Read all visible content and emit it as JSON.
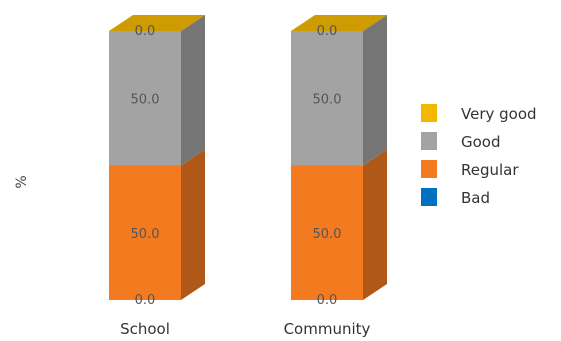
{
  "chart_data": {
    "type": "bar",
    "stacked": true,
    "style": "3d",
    "categories": [
      "School",
      "Community"
    ],
    "series": [
      {
        "name": "Bad",
        "color": "#0070C0",
        "values": [
          0.0,
          0.0
        ],
        "labels": [
          "0.0",
          "0.0"
        ]
      },
      {
        "name": "Regular",
        "color": "#F47A20",
        "values": [
          50.0,
          50.0
        ],
        "labels": [
          "50.0",
          "50.0"
        ]
      },
      {
        "name": "Good",
        "color": "#A3A3A3",
        "values": [
          50.0,
          50.0
        ],
        "labels": [
          "50.0",
          "50.0"
        ]
      },
      {
        "name": "Very good",
        "color": "#F2B800",
        "values": [
          0.0,
          0.0
        ],
        "labels": [
          "0.0",
          "0.0"
        ]
      }
    ],
    "legend_order": [
      "Very good",
      "Good",
      "Regular",
      "Bad"
    ],
    "ylabel": "%",
    "ylim": [
      0,
      100
    ],
    "grid": false,
    "legend_position": "right"
  }
}
